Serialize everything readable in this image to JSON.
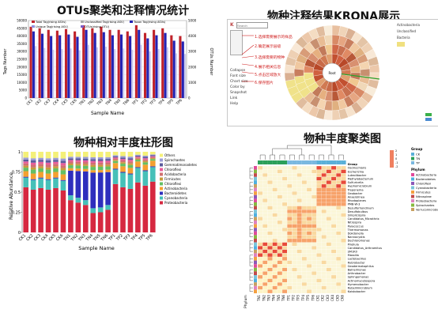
{
  "titles": {
    "otu": "OTUs聚类和注释情况统计",
    "krona": "物种注释结果KRONA展示",
    "bar": "物种相对丰度柱形图",
    "heatmap": "物种丰度聚类图"
  },
  "otu_chart": {
    "type": "bar",
    "ylabel": "Tags Number",
    "y2label": "OTUs Number",
    "xlabel": "Sample Name",
    "yticks": [
      "0",
      "5000",
      "10000",
      "15000",
      "20000",
      "25000",
      "30000",
      "35000",
      "40000",
      "45000",
      "50000"
    ],
    "y2ticks": [
      "0",
      "1000",
      "2000",
      "3000",
      "4000",
      "5000"
    ],
    "legend": [
      "Total Tag(rising ASVs)",
      "Unclassified Tag(rising ASV)",
      "Taxon Tag(rising ASVs)",
      "Unique Tag(rising ASV)",
      "OTUs(rising OTU)"
    ],
    "categories": [
      "CK1",
      "CK2",
      "CK3",
      "CK4",
      "CK5",
      "CK6",
      "TN1",
      "TN2",
      "TN3",
      "TN4",
      "TN5",
      "TN6",
      "TP1",
      "TP2",
      "TP3",
      "TP4",
      "TP5",
      "TP6"
    ],
    "values_total": [
      46000,
      45000,
      44000,
      43500,
      44500,
      43000,
      47000,
      45000,
      46000,
      44000,
      44000,
      43000,
      47000,
      42000,
      44000,
      45000,
      40500,
      40000
    ],
    "values_taxon": [
      43000,
      41500,
      40000,
      40500,
      41000,
      39500,
      44000,
      42000,
      42500,
      40500,
      41000,
      40000,
      44000,
      38500,
      40500,
      42000,
      37000,
      36500
    ],
    "colors": {
      "total": "#c0232b",
      "taxon": "#2323b4",
      "otus": "#7a5cc8"
    }
  },
  "krona": {
    "toolbar": {
      "search_placeholder": "Search",
      "collapse": "Collapse",
      "font_size": "Font size",
      "chart_size": "Chart size",
      "snapshot": "Snapshot",
      "link": "Link",
      "help": "Help",
      "add_color": "Color by"
    },
    "annotations": [
      "1.选择需要展示的样品",
      "2.确定展示层级",
      "3.选择需要的物种",
      "4.展示相关信息",
      "5.点击区域放大",
      "6.保存图片"
    ],
    "right_panel": [
      "Actinobacteria",
      "Unclassified",
      "Bacteria"
    ],
    "center_label": "Root"
  },
  "bar_chart": {
    "type": "bar",
    "xlabel": "Sample Name",
    "ylabel": "Relative Abundance",
    "yticks": [
      "0",
      "0.25",
      "0.5",
      "0.75",
      "1"
    ],
    "categories": [
      "CK1",
      "CK2",
      "CK3",
      "CK4",
      "CK5",
      "CK6",
      "TN1",
      "TN2",
      "TN3",
      "TN4",
      "TN5",
      "TN6",
      "TP1",
      "TP2",
      "TP3",
      "TP4",
      "TP5",
      "TP6"
    ],
    "legend": [
      "Others",
      "Spirochaetes",
      "Gemmatimonadetes",
      "Chloroflexi",
      "Acidobacteria",
      "Firmicutes",
      "Chloroflexi",
      "Actinobacteria",
      "Bacteroidetes",
      "Cyanobacteria",
      "Proteobacteria"
    ],
    "legend_colors": [
      "#f4f078",
      "#9b9bd6",
      "#5a5a9b",
      "#e85c9b",
      "#d07070",
      "#c89b3b",
      "#64bf64",
      "#f4a030",
      "#2e2ebd",
      "#46c0b8",
      "#d62840"
    ],
    "series_proteobacteria": [
      0.56,
      0.53,
      0.55,
      0.53,
      0.55,
      0.52,
      0.4,
      0.37,
      0.34,
      0.24,
      0.25,
      0.28,
      0.6,
      0.56,
      0.54,
      0.62,
      0.58,
      0.63
    ]
  },
  "heatmap": {
    "legend_group_title": "Group",
    "groups": [
      "CK",
      "TN",
      "TP"
    ],
    "group_colors": [
      "#5ab0d8",
      "#2ca05a",
      "#7ab8e0"
    ],
    "legend_phylum_title": "Phylum",
    "phyla": [
      "Actinobacteria",
      "Bacteroidetes",
      "Chloroflexi",
      "Cyanobacteria",
      "Firmicutes",
      "Nitrospirae",
      "Proteobacteria",
      "Spirochaetes",
      "Verrucomicrobia"
    ],
    "phylum_colors": [
      "#e04a9b",
      "#4fb0e0",
      "#8c58b8",
      "#7ac4d8",
      "#f4a040",
      "#c34a4a",
      "#e081c0",
      "#86b940",
      "#c8a060"
    ],
    "scale_ticks": [
      "2",
      "1",
      "0",
      "-1",
      "-2"
    ],
    "genera": [
      "Group",
      "Oscillochloris",
      "Escherichia",
      "Luteolibacter",
      "Methylobacterium",
      "Sulfuricella",
      "Hyphomicrobium",
      "Treponema",
      "Geobacter",
      "Anaerolinea",
      "Rhodoplanes",
      "PMB-W-3",
      "Desulforhondinum",
      "Desulfobulbus",
      "Simplicispira",
      "Candidatus_Microthrix",
      "Nitrospira",
      "Paracoccus",
      "Thermomonas",
      "Dokdonella",
      "Nannocystis",
      "Dechloromonas",
      "Pirellula",
      "Candidatus_Arthromitus",
      "SM1K0",
      "Massilia",
      "Lactobacillus",
      "Rubrobacter",
      "Geodermatophilus",
      "Balneimonas",
      "Arthrobacter",
      "Sphingomonas",
      "Actinomycetospora",
      "Hymenobacter",
      "Rubellimicrobium",
      "Kaistobacter"
    ],
    "x_labels": [
      "TN1",
      "TN2",
      "TN3",
      "TN4",
      "TN5",
      "TN6",
      "TP1",
      "TP2",
      "TP3",
      "TP4",
      "TP5",
      "TP6",
      "CK1",
      "CK2",
      "CK3",
      "CK4",
      "CK5",
      "CK6"
    ],
    "side_label": "Phylum"
  }
}
